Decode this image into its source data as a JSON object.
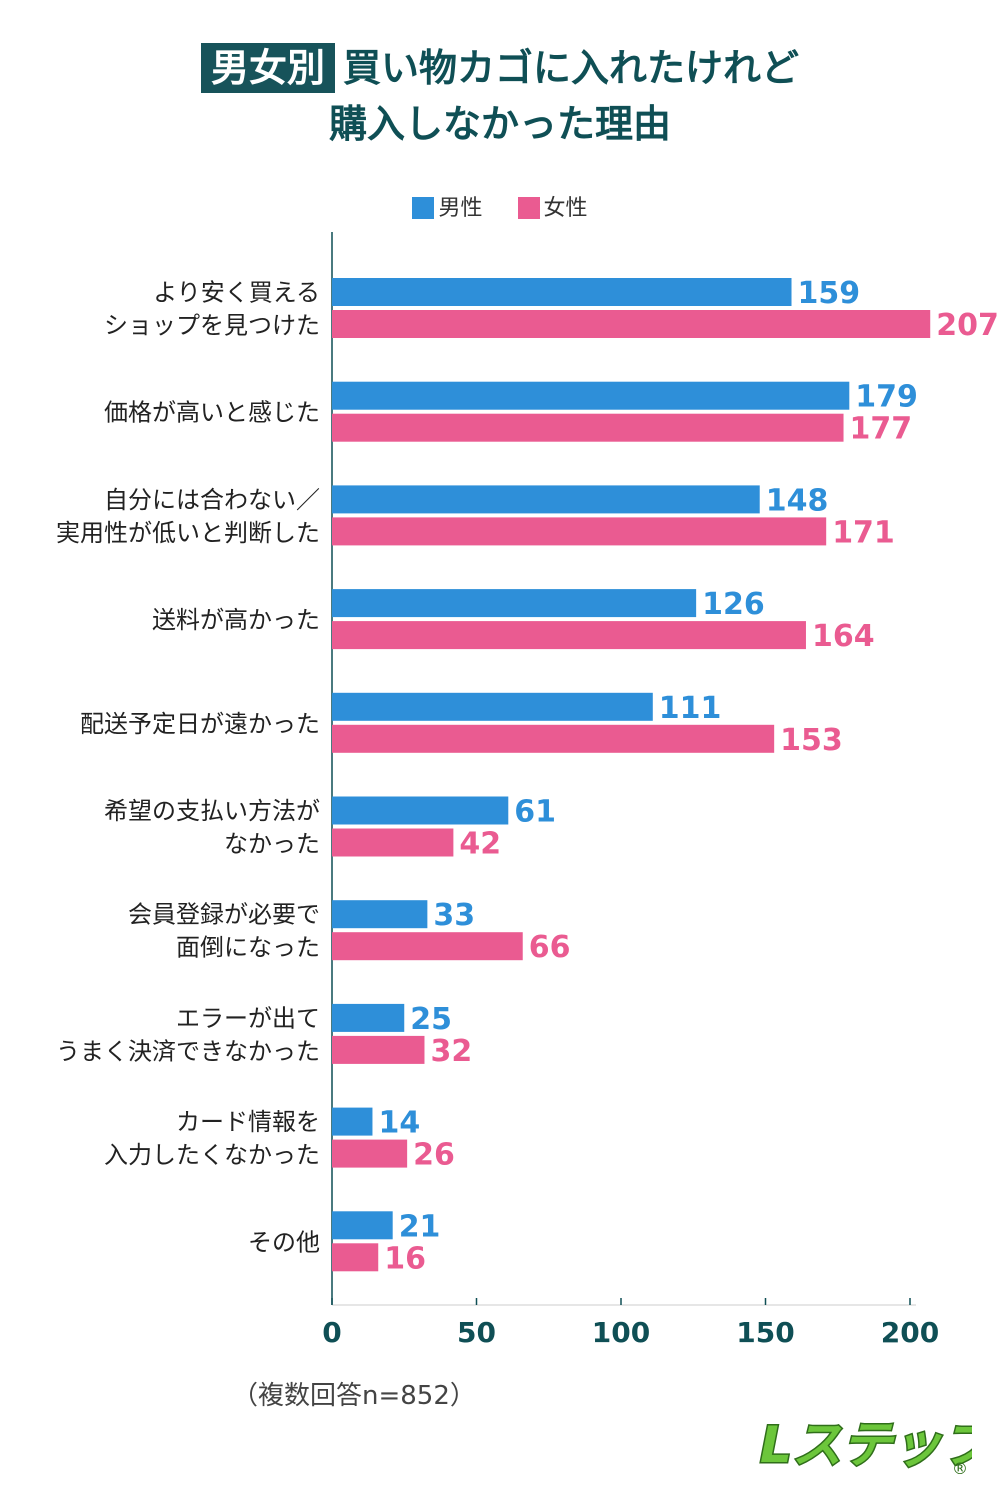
{
  "title": {
    "badge": "男女別",
    "line1": "買い物カゴに入れたけれど",
    "line2": "購入しなかった理由"
  },
  "note": "（複数回答n=852）",
  "logo": {
    "text": "Lステップ",
    "mark": "®"
  },
  "colors": {
    "male": "#2e8fd9",
    "female": "#ea5b91",
    "axis": "#0f4f55",
    "title": "#0f4f55"
  },
  "chart_data": {
    "type": "bar",
    "orientation": "horizontal",
    "categories": [
      [
        "より安く買える",
        "ショップを見つけた"
      ],
      [
        "価格が高いと感じた"
      ],
      [
        "自分には合わない／",
        "実用性が低いと判断した"
      ],
      [
        "送料が高かった"
      ],
      [
        "配送予定日が遠かった"
      ],
      [
        "希望の支払い方法が",
        "なかった"
      ],
      [
        "会員登録が必要で",
        "面倒になった"
      ],
      [
        "エラーが出て",
        "うまく決済できなかった"
      ],
      [
        "カード情報を",
        "入力したくなかった"
      ],
      [
        "その他"
      ]
    ],
    "series": [
      {
        "name": "男性",
        "values": [
          159,
          179,
          148,
          126,
          111,
          61,
          33,
          25,
          14,
          21
        ]
      },
      {
        "name": "女性",
        "values": [
          207,
          177,
          171,
          164,
          153,
          42,
          66,
          32,
          26,
          16
        ]
      }
    ],
    "xlim": [
      0,
      200
    ],
    "xticks": [
      0,
      50,
      100,
      150,
      200
    ],
    "legend": "top",
    "grid": false
  }
}
